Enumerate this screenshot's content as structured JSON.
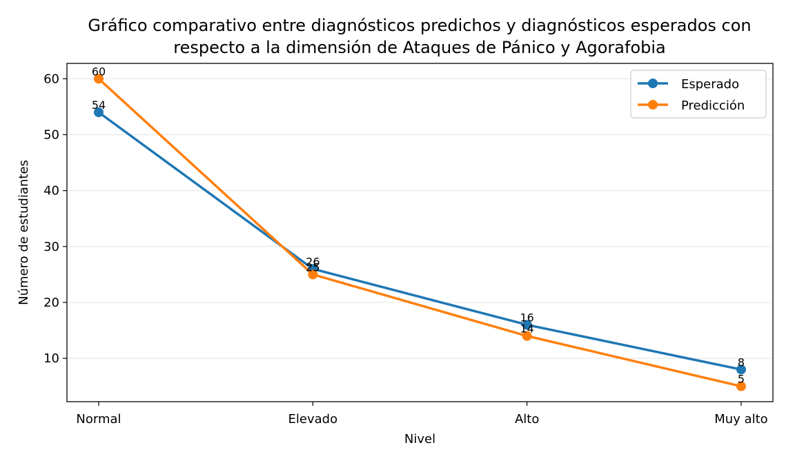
{
  "chart_data": {
    "type": "line",
    "title_lines": [
      "Gráfico comparativo entre diagnósticos predichos y diagnósticos esperados con",
      "respecto a la dimensión de Ataques de Pánico y Agorafobia"
    ],
    "xlabel": "Nivel",
    "ylabel": "Número de estudiantes",
    "categories": [
      "Normal",
      "Elevado",
      "Alto",
      "Muy alto"
    ],
    "ylim": [
      2.25,
      62.75
    ],
    "yticks": [
      10,
      20,
      30,
      40,
      50,
      60
    ],
    "grid": "horizontal",
    "legend_position": "top-right",
    "series": [
      {
        "name": "Esperado",
        "values": [
          54,
          26,
          16,
          8
        ],
        "color": "#1f77b4"
      },
      {
        "name": "Predicción",
        "values": [
          60,
          25,
          14,
          5
        ],
        "color": "#ff7f0e"
      }
    ]
  }
}
